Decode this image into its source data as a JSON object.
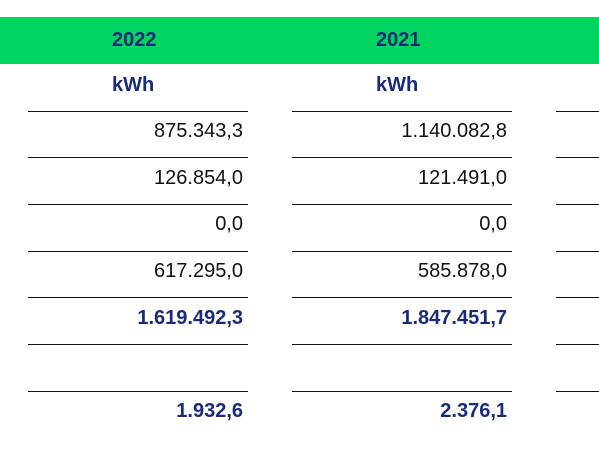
{
  "columns": [
    {
      "year": "2022",
      "unit": "kWh",
      "rows": [
        "875.343,3",
        "126.854,0",
        "0,0",
        "617.295,0"
      ],
      "total": "1.619.492,3",
      "blank": "",
      "footer": "1.932,6"
    },
    {
      "year": "2021",
      "unit": "kWh",
      "rows": [
        "1.140.082,8",
        "121.491,0",
        "0,0",
        "585.878,0"
      ],
      "total": "1.847.451,7",
      "blank": "",
      "footer": "2.376,1"
    }
  ],
  "colors": {
    "header_band": "#00d65f",
    "accent_text": "#1b2a78",
    "body_text": "#111111"
  }
}
